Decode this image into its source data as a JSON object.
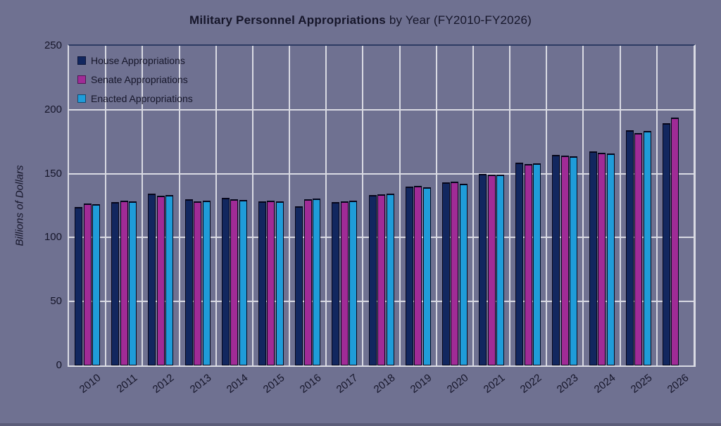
{
  "title": {
    "bold": "Military Personnel Appropriations",
    "regular": " by Year (FY2010-FY2026)"
  },
  "chart_data": {
    "type": "bar",
    "title": "Military Personnel Appropriations by Year (FY2010-FY2026)",
    "xlabel": "",
    "ylabel": "Billions of Dollars",
    "ylim": [
      0,
      250
    ],
    "yticks": [
      0,
      50,
      100,
      150,
      200,
      250
    ],
    "grid": true,
    "legend_position": "upper-left",
    "categories": [
      "2010",
      "2011",
      "2012",
      "2013",
      "2014",
      "2015",
      "2016",
      "2017",
      "2018",
      "2019",
      "2020",
      "2021",
      "2022",
      "2023",
      "2024",
      "2025",
      "2026"
    ],
    "series": [
      {
        "name": "House Appropriations",
        "color": "#12275f",
        "values": [
          124,
          128,
          134.5,
          130,
          131,
          128.5,
          124.5,
          127.5,
          133,
          140,
          143,
          150,
          158.5,
          164.5,
          167.5,
          184,
          189.5
        ]
      },
      {
        "name": "Senate Appropriations",
        "color": "#a02b96",
        "values": [
          126.5,
          129,
          132.5,
          128.5,
          130,
          129,
          130,
          128.5,
          134,
          140.5,
          143.5,
          149.5,
          157.5,
          164,
          166.5,
          181.5,
          194
        ]
      },
      {
        "name": "Enacted Appropriations",
        "color": "#1f9cd9",
        "values": [
          126,
          128.5,
          133,
          129,
          129.5,
          128.5,
          130.5,
          129,
          134.5,
          139.5,
          142,
          149.5,
          158,
          163.5,
          166,
          183.5,
          null
        ]
      }
    ]
  },
  "colors": {
    "background": "#6f7191",
    "gridline": "#d9dae3",
    "plot_top_border": "#2e3b63",
    "bar_edge": "#05051a",
    "text": "#16162a",
    "bottom_strip": "#5b5d79"
  }
}
